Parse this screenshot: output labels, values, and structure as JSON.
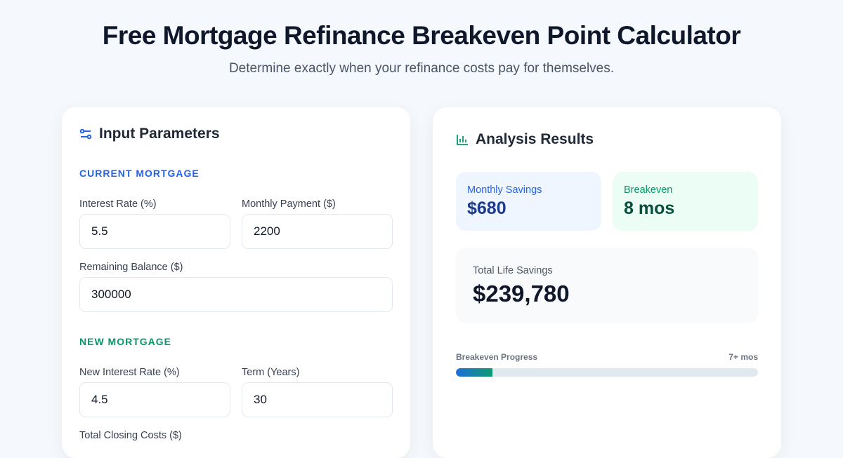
{
  "header": {
    "title": "Free Mortgage Refinance Breakeven Point Calculator",
    "subtitle": "Determine exactly when your refinance costs pay for themselves."
  },
  "inputs": {
    "title": "Input Parameters",
    "icon": "sliders-icon",
    "current_section": "CURRENT MORTGAGE",
    "new_section": "NEW MORTGAGE",
    "interest_rate_label": "Interest Rate (%)",
    "interest_rate": "5.5",
    "monthly_payment_label": "Monthly Payment ($)",
    "monthly_payment": "2200",
    "balance_label": "Remaining Balance ($)",
    "balance": "300000",
    "new_rate_label": "New Interest Rate (%)",
    "new_rate": "4.5",
    "term_label": "Term (Years)",
    "term": "30",
    "closing_label": "Total Closing Costs ($)"
  },
  "results": {
    "title": "Analysis Results",
    "icon": "bar-chart-icon",
    "monthly_label": "Monthly Savings",
    "monthly_value": "$680",
    "breakeven_label": "Breakeven",
    "breakeven_value": "8 mos",
    "total_label": "Total Life Savings",
    "total_value": "$239,780",
    "progress_label": "Breakeven Progress",
    "progress_value_label": "7+ mos",
    "progress_percent": 12
  },
  "colors": {
    "blue": "#2563eb",
    "green": "#059669",
    "dark_blue": "#1e3a8a",
    "dark_green": "#064e3b"
  }
}
